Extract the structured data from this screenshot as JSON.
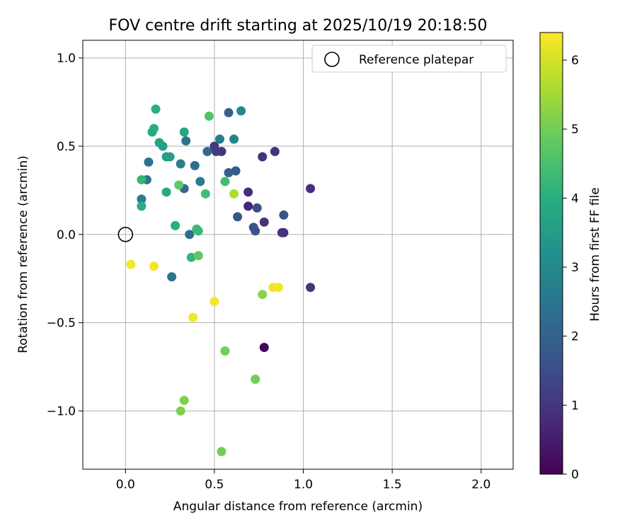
{
  "chart_data": {
    "type": "scatter",
    "title": "FOV centre drift starting at 2025/10/19 20:18:50",
    "xlabel": "Angular distance from reference (arcmin)",
    "ylabel": "Rotation from reference (arcmin)",
    "xlim": [
      -0.24,
      2.18
    ],
    "ylim": [
      -1.33,
      1.1
    ],
    "xticks": [
      0.0,
      0.5,
      1.0,
      1.5,
      2.0
    ],
    "xtick_labels": [
      "0.0",
      "0.5",
      "1.0",
      "1.5",
      "2.0"
    ],
    "yticks": [
      1.0,
      0.5,
      0.0,
      -0.5,
      -1.0
    ],
    "ytick_labels": [
      "1.0",
      "0.5",
      "0.0",
      "−0.5",
      "−1.0"
    ],
    "grid": true,
    "legend": {
      "position": "top-right",
      "entries": [
        "Reference platepar"
      ]
    },
    "reference_point": {
      "x": 0.0,
      "y": 0.0,
      "label": "Reference platepar"
    },
    "colorbar": {
      "label": "Hours from first FF file",
      "range": [
        0,
        6.4
      ],
      "ticks": [
        0,
        1,
        2,
        3,
        4,
        5,
        6
      ],
      "tick_labels": [
        "0",
        "1",
        "2",
        "3",
        "4",
        "5",
        "6"
      ],
      "colormap": "viridis"
    },
    "points": [
      {
        "x": 0.78,
        "y": -0.64,
        "t": 0.1
      },
      {
        "x": 0.89,
        "y": 0.01,
        "t": 0.9
      },
      {
        "x": 0.88,
        "y": 0.01,
        "t": 0.9
      },
      {
        "x": 0.78,
        "y": 0.07,
        "t": 0.9
      },
      {
        "x": 0.69,
        "y": 0.24,
        "t": 0.8
      },
      {
        "x": 0.69,
        "y": 0.16,
        "t": 0.7
      },
      {
        "x": 1.04,
        "y": 0.26,
        "t": 0.8
      },
      {
        "x": 1.04,
        "y": -0.3,
        "t": 0.9
      },
      {
        "x": 0.84,
        "y": 0.47,
        "t": 0.9
      },
      {
        "x": 0.77,
        "y": 0.44,
        "t": 0.9
      },
      {
        "x": 0.54,
        "y": 0.47,
        "t": 0.9
      },
      {
        "x": 0.5,
        "y": 0.5,
        "t": 1.0
      },
      {
        "x": 0.51,
        "y": 0.47,
        "t": 1.1
      },
      {
        "x": 0.74,
        "y": 0.15,
        "t": 1.5
      },
      {
        "x": 0.72,
        "y": 0.04,
        "t": 1.6
      },
      {
        "x": 0.73,
        "y": 0.02,
        "t": 1.6
      },
      {
        "x": 0.89,
        "y": 0.11,
        "t": 1.7
      },
      {
        "x": 0.63,
        "y": 0.1,
        "t": 1.7
      },
      {
        "x": 0.62,
        "y": 0.36,
        "t": 1.8
      },
      {
        "x": 0.58,
        "y": 0.35,
        "t": 1.9
      },
      {
        "x": 0.58,
        "y": 0.69,
        "t": 2.0
      },
      {
        "x": 0.46,
        "y": 0.47,
        "t": 2.2
      },
      {
        "x": 0.53,
        "y": 0.54,
        "t": 2.6
      },
      {
        "x": 0.39,
        "y": 0.39,
        "t": 2.3
      },
      {
        "x": 0.33,
        "y": 0.26,
        "t": 2.2
      },
      {
        "x": 0.34,
        "y": 0.53,
        "t": 2.4
      },
      {
        "x": 0.36,
        "y": 0.0,
        "t": 2.4
      },
      {
        "x": 0.13,
        "y": 0.41,
        "t": 2.4
      },
      {
        "x": 0.12,
        "y": 0.31,
        "t": 2.5
      },
      {
        "x": 0.09,
        "y": 0.2,
        "t": 2.6
      },
      {
        "x": 0.26,
        "y": -0.24,
        "t": 2.5
      },
      {
        "x": 0.31,
        "y": 0.4,
        "t": 2.7
      },
      {
        "x": 0.42,
        "y": 0.3,
        "t": 2.7
      },
      {
        "x": 0.61,
        "y": 0.54,
        "t": 2.9
      },
      {
        "x": 0.65,
        "y": 0.7,
        "t": 3.0
      },
      {
        "x": 0.23,
        "y": 0.44,
        "t": 3.5
      },
      {
        "x": 0.25,
        "y": 0.44,
        "t": 3.6
      },
      {
        "x": 0.21,
        "y": 0.5,
        "t": 3.6
      },
      {
        "x": 0.19,
        "y": 0.52,
        "t": 3.7
      },
      {
        "x": 0.15,
        "y": 0.58,
        "t": 3.9
      },
      {
        "x": 0.16,
        "y": 0.6,
        "t": 4.0
      },
      {
        "x": 0.17,
        "y": 0.71,
        "t": 4.0
      },
      {
        "x": 0.33,
        "y": 0.58,
        "t": 3.8
      },
      {
        "x": 0.09,
        "y": 0.31,
        "t": 4.2
      },
      {
        "x": 0.09,
        "y": 0.16,
        "t": 4.0
      },
      {
        "x": 0.23,
        "y": 0.24,
        "t": 3.9
      },
      {
        "x": 0.28,
        "y": 0.05,
        "t": 4.0
      },
      {
        "x": 0.4,
        "y": 0.03,
        "t": 4.3
      },
      {
        "x": 0.41,
        "y": 0.02,
        "t": 4.3
      },
      {
        "x": 0.37,
        "y": -0.13,
        "t": 4.2
      },
      {
        "x": 0.45,
        "y": 0.23,
        "t": 4.4
      },
      {
        "x": 0.47,
        "y": 0.67,
        "t": 4.6
      },
      {
        "x": 0.56,
        "y": 0.3,
        "t": 4.4
      },
      {
        "x": 0.41,
        "y": -0.12,
        "t": 4.8
      },
      {
        "x": 0.3,
        "y": 0.28,
        "t": 4.8
      },
      {
        "x": 0.56,
        "y": -0.66,
        "t": 5.0
      },
      {
        "x": 0.73,
        "y": -0.82,
        "t": 5.0
      },
      {
        "x": 0.54,
        "y": -1.23,
        "t": 5.0
      },
      {
        "x": 0.31,
        "y": -1.0,
        "t": 5.1
      },
      {
        "x": 0.33,
        "y": -0.94,
        "t": 5.1
      },
      {
        "x": 0.77,
        "y": -0.34,
        "t": 5.2
      },
      {
        "x": 0.61,
        "y": 0.23,
        "t": 5.6
      },
      {
        "x": 0.03,
        "y": -0.17,
        "t": 6.3
      },
      {
        "x": 0.16,
        "y": -0.18,
        "t": 6.3
      },
      {
        "x": 0.38,
        "y": -0.47,
        "t": 6.3
      },
      {
        "x": 0.5,
        "y": -0.38,
        "t": 6.3
      },
      {
        "x": 0.83,
        "y": -0.3,
        "t": 6.3
      },
      {
        "x": 0.86,
        "y": -0.3,
        "t": 6.3
      }
    ]
  }
}
